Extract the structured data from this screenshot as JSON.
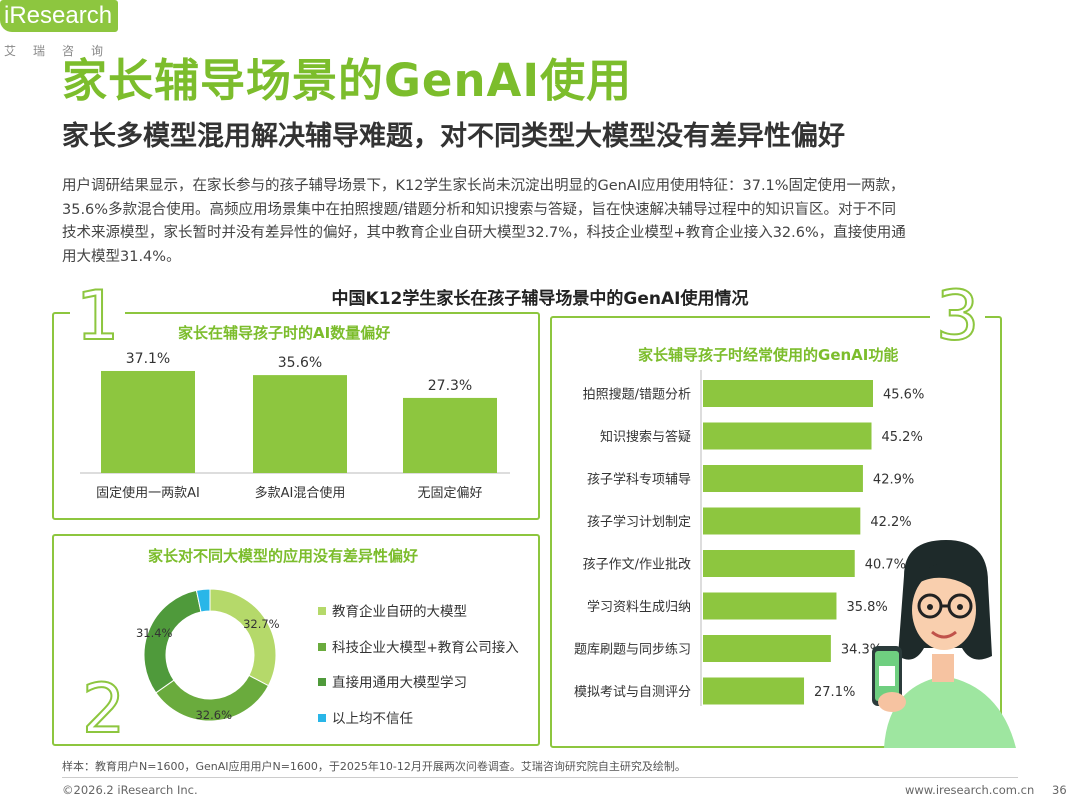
{
  "header": {
    "title": "家长辅导场景的GenAI使用",
    "subtitle": "家长多模型混用解决辅导难题，对不同类型大模型没有差异性偏好",
    "logo_word": "iResearch",
    "logo_cn": "艾瑞咨询"
  },
  "intro_lines": [
    "用户调研结果显示，在家长参与的孩子辅导场景下，K12学生家长尚未沉淀出明显的GenAI应用使用特征：37.1%固定使用一两款，",
    "35.6%多款混合使用。高频应用场景集中在拍照搜题/错题分析和知识搜索与答疑，旨在快速解决辅导过程中的知识盲区。对于不同",
    "技术来源模型，家长暂时并没有差异性的偏好，其中教育企业自研大模型32.7%，科技企业模型+教育企业接入32.6%，直接使用通",
    "用大模型31.4%。"
  ],
  "chart_title": "中国K12学生家长在孩子辅导场景中的GenAI使用情况",
  "panel_numbers": {
    "p1": "1",
    "p2": "2",
    "p3": "3"
  },
  "colors": {
    "green": "#8dc63f",
    "mid_green": "#6aab3d",
    "dark_green": "#4f9a3b",
    "light_green": "#b5d96a",
    "cyan": "#29b6e8"
  },
  "chart_data": [
    {
      "type": "bar",
      "title": "家长在辅导孩子时的AI数量偏好",
      "categories": [
        "固定使用一两款AI",
        "多款AI混合使用",
        "无固定偏好"
      ],
      "values": [
        37.1,
        35.6,
        27.3
      ],
      "labels": [
        "37.1%",
        "35.6%",
        "27.3%"
      ],
      "ylim": [
        0,
        40
      ]
    },
    {
      "type": "pie",
      "title": "家长对不同大模型的应用没有差异性偏好",
      "categories": [
        "教育企业自研的大模型",
        "科技企业大模型+教育公司接入",
        "直接用通用大模型学习",
        "以上均不信任"
      ],
      "values": [
        32.7,
        32.6,
        31.4,
        3.3
      ],
      "labels": [
        "32.7%",
        "32.6%",
        "31.4%",
        ""
      ],
      "colors": [
        "#b5d96a",
        "#6aab3d",
        "#4f9a3b",
        "#29b6e8"
      ]
    },
    {
      "type": "bar",
      "orientation": "horizontal",
      "title": "家长辅导孩子时经常使用的GenAI功能",
      "categories": [
        "拍照搜题/错题分析",
        "知识搜索与答疑",
        "孩子学科专项辅导",
        "孩子学习计划制定",
        "孩子作文/作业批改",
        "学习资料生成归纳",
        "题库刷题与同步练习",
        "模拟考试与自测评分"
      ],
      "values": [
        45.6,
        45.2,
        42.9,
        42.2,
        40.7,
        35.8,
        34.3,
        27.1
      ],
      "labels": [
        "45.6%",
        "45.2%",
        "42.9%",
        "42.2%",
        "40.7%",
        "35.8%",
        "34.3%",
        "27.1%"
      ],
      "xlim": [
        0,
        50
      ]
    }
  ],
  "footer": {
    "footnote": "样本：教育用户N=1600，GenAI应用用户N=1600，于2025年10-12月开展两次问卷调查。艾瑞咨询研究院自主研究及绘制。",
    "copyright": "©2026.2 iResearch Inc.",
    "website": "www.iresearch.com.cn",
    "page": "36"
  }
}
